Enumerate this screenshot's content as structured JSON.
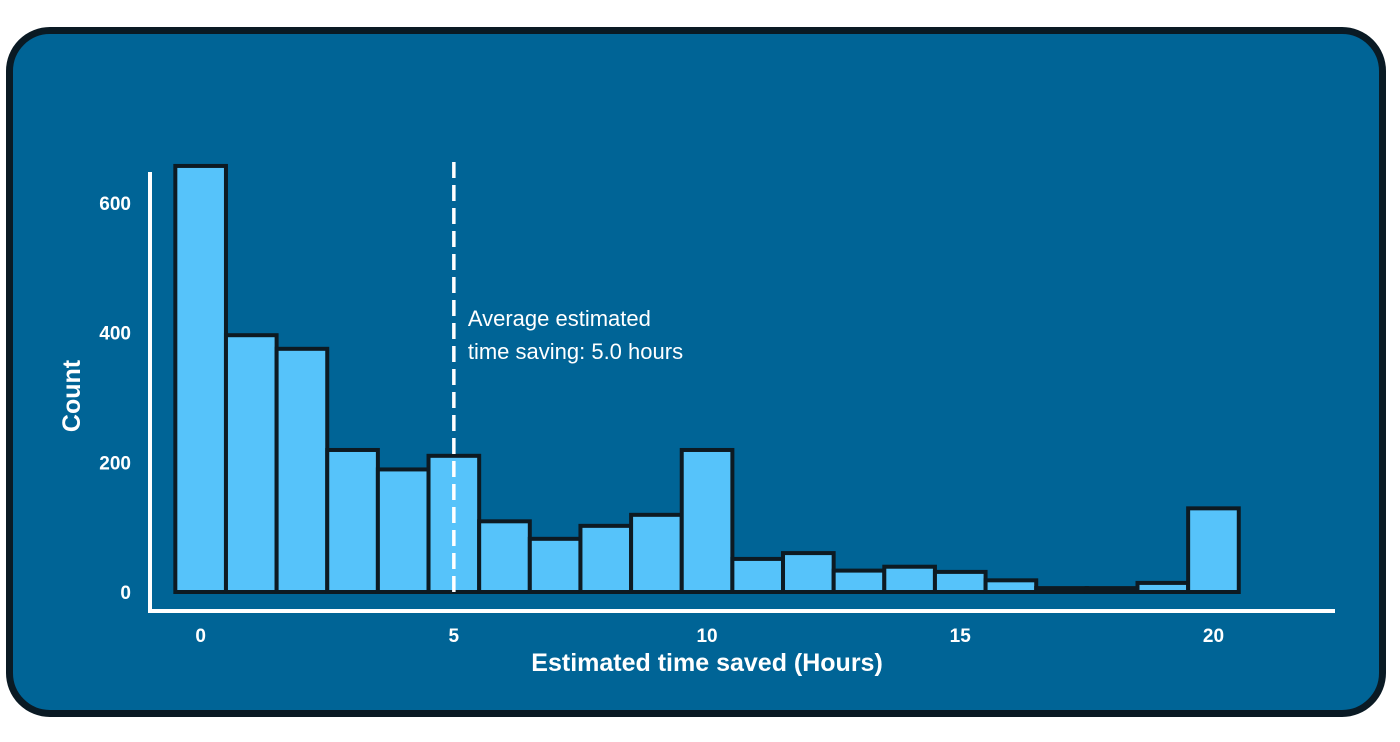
{
  "chart_data": {
    "type": "bar",
    "xlabel": "Estimated time saved (Hours)",
    "ylabel": "Count",
    "xlim": [
      -1,
      22.4
    ],
    "ylim": [
      0,
      660
    ],
    "xticks": [
      0,
      5,
      10,
      15,
      20
    ],
    "yticks": [
      0,
      200,
      400,
      600
    ],
    "bin_width": 1,
    "bins": [
      {
        "x": 0,
        "value": 657
      },
      {
        "x": 1,
        "value": 396
      },
      {
        "x": 2,
        "value": 375
      },
      {
        "x": 3,
        "value": 219
      },
      {
        "x": 4,
        "value": 189
      },
      {
        "x": 5,
        "value": 210
      },
      {
        "x": 6,
        "value": 109
      },
      {
        "x": 7,
        "value": 82
      },
      {
        "x": 8,
        "value": 102
      },
      {
        "x": 9,
        "value": 119
      },
      {
        "x": 10,
        "value": 219
      },
      {
        "x": 11,
        "value": 51
      },
      {
        "x": 12,
        "value": 60
      },
      {
        "x": 13,
        "value": 33
      },
      {
        "x": 14,
        "value": 39
      },
      {
        "x": 15,
        "value": 31
      },
      {
        "x": 16,
        "value": 18
      },
      {
        "x": 17,
        "value": 6
      },
      {
        "x": 18,
        "value": 6
      },
      {
        "x": 19,
        "value": 14
      },
      {
        "x": 20,
        "value": 129
      }
    ],
    "reference_line": {
      "x": 5,
      "style": "dashed",
      "label_line1": "Average estimated",
      "label_line2": "time saving: 5.0 hours"
    },
    "colors": {
      "background": "#006496",
      "bar_fill": "#56c3fa",
      "bar_stroke": "#0d1a22",
      "axis": "#ffffff",
      "text": "#ffffff"
    },
    "grid": false,
    "legend": "none"
  }
}
